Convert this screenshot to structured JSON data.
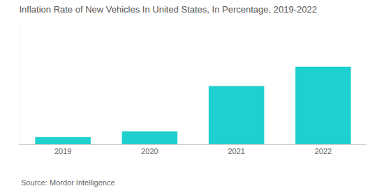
{
  "chart_data": {
    "type": "bar",
    "title": "Inflation Rate of New Vehicles In United States, In Percentage, 2019-2022",
    "categories": [
      "2019",
      "2020",
      "2021",
      "2022"
    ],
    "values": [
      1.1,
      2,
      9,
      12
    ],
    "color": "#1fd0d0",
    "ylim": [
      0,
      18
    ],
    "grid": false,
    "tick_labels": "x",
    "source": "Source: Mordor Intelligence"
  }
}
